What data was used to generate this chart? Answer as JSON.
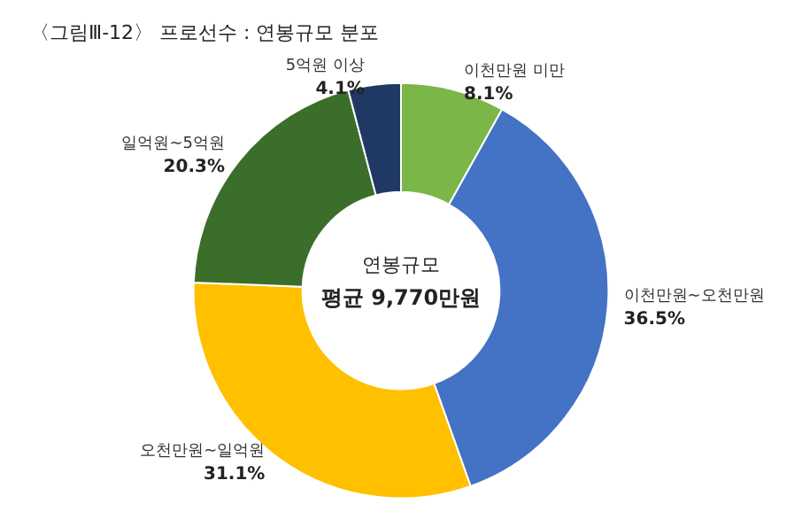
{
  "chart_data": {
    "type": "donut",
    "title": "〈그림Ⅲ-12〉 프로선수 : 연봉규모 분포",
    "categories": [
      "이천만원 미만",
      "이천만원~오천만원",
      "오천만원~일억원",
      "일억원~5억원",
      "5억원 이상"
    ],
    "values": [
      8.1,
      36.5,
      31.1,
      20.3,
      4.1
    ],
    "value_labels": [
      "8.1%",
      "36.5%",
      "31.1%",
      "20.3%",
      "4.1%"
    ],
    "colors": [
      "#7ab648",
      "#4472c4",
      "#ffc000",
      "#3b6e2a",
      "#203864"
    ],
    "annotations": [
      "연봉규모",
      "평균 9,770만원"
    ]
  }
}
